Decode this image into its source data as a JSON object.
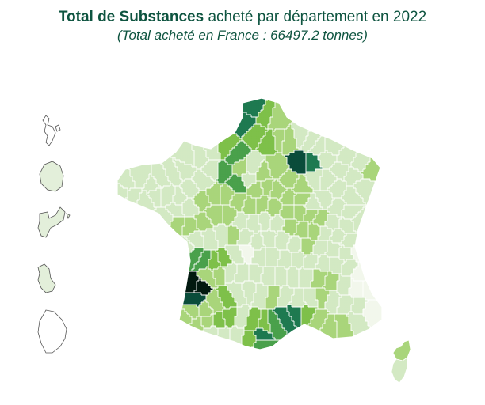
{
  "header": {
    "title_bold": "Total de Substances",
    "title_rest": "acheté par département en 2022",
    "subtitle": "(Total acheté en France : 66497.2 tonnes)"
  },
  "colors": {
    "title": "#0e5440",
    "scale": [
      "#f2f7ec",
      "#d3e9c3",
      "#a9d57b",
      "#7ec04a",
      "#4aa14b",
      "#1e7a50",
      "#0b4d3b",
      "#021a10"
    ],
    "overseas_fill": "#e3efda",
    "overseas_stroke": "#555555"
  },
  "map": {
    "region": "France",
    "overseas_territories": [
      "Guadeloupe",
      "Martinique",
      "Guyane",
      "La Réunion",
      "Mayotte"
    ]
  }
}
